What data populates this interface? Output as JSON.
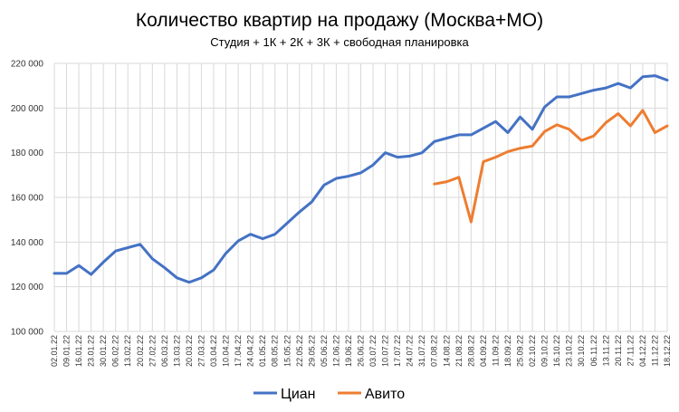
{
  "chart_data": {
    "type": "line",
    "title": "Количество квартир на продажу (Москва+МО)",
    "subtitle": "Студия + 1К + 2К + 3К + свободная планировка",
    "xlabel": "",
    "ylabel": "",
    "ylim": [
      100000,
      220000
    ],
    "yticks": [
      100000,
      120000,
      140000,
      160000,
      180000,
      200000,
      220000
    ],
    "ytick_labels": [
      "100 000",
      "120 000",
      "140 000",
      "160 000",
      "180 000",
      "200 000",
      "220 000"
    ],
    "grid": true,
    "legend": "bottom",
    "categories": [
      "02.01.22",
      "09.01.22",
      "16.01.22",
      "23.01.22",
      "30.01.22",
      "06.02.22",
      "13.02.22",
      "20.02.22",
      "27.02.22",
      "06.03.22",
      "13.03.22",
      "20.03.22",
      "27.03.22",
      "03.04.22",
      "10.04.22",
      "17.04.22",
      "24.04.22",
      "01.05.22",
      "08.05.22",
      "15.05.22",
      "22.05.22",
      "29.05.22",
      "05.06.22",
      "12.06.22",
      "19.06.22",
      "26.06.22",
      "03.07.22",
      "10.07.22",
      "17.07.22",
      "24.07.22",
      "31.07.22",
      "07.08.22",
      "14.08.22",
      "21.08.22",
      "28.08.22",
      "04.09.22",
      "11.09.22",
      "18.09.22",
      "25.09.22",
      "02.10.22",
      "09.10.22",
      "16.10.22",
      "23.10.22",
      "30.10.22",
      "06.11.22",
      "13.11.22",
      "20.11.22",
      "27.11.22",
      "04.12.22",
      "11.12.22",
      "18.12.22"
    ],
    "series": [
      {
        "name": "Циан",
        "color": "#4472c4",
        "values": [
          126000,
          126000,
          129500,
          125500,
          131000,
          136000,
          137500,
          139000,
          132500,
          128500,
          124000,
          122000,
          124000,
          127500,
          135000,
          140500,
          143500,
          141500,
          143500,
          148500,
          153500,
          158000,
          165500,
          168500,
          169500,
          171000,
          174500,
          180000,
          178000,
          178500,
          180000,
          185000,
          186500,
          188000,
          188000,
          191000,
          194000,
          189000,
          196000,
          190500,
          200500,
          205000,
          205000,
          206500,
          208000,
          209000,
          211000,
          209000,
          214000,
          214500,
          212500
        ]
      },
      {
        "name": "Авито",
        "color": "#ed7d31",
        "values": [
          null,
          null,
          null,
          null,
          null,
          null,
          null,
          null,
          null,
          null,
          null,
          null,
          null,
          null,
          null,
          null,
          null,
          null,
          null,
          null,
          null,
          null,
          null,
          null,
          null,
          null,
          null,
          null,
          null,
          null,
          null,
          166000,
          167000,
          169000,
          149000,
          176000,
          178000,
          180500,
          182000,
          183000,
          189500,
          192500,
          190500,
          185500,
          187500,
          193500,
          197500,
          192000,
          199000,
          189000,
          192000
        ]
      }
    ]
  }
}
